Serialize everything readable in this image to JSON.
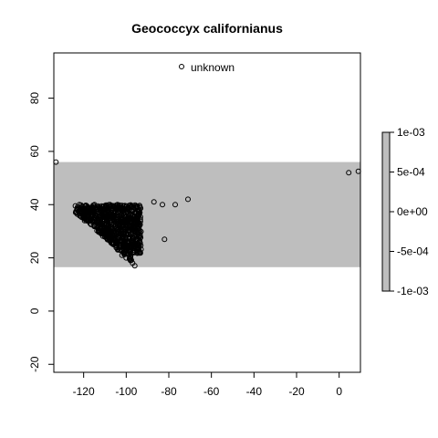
{
  "chart_data": {
    "type": "scatter",
    "title": "Geococcyx californianus",
    "xlim": [
      -134,
      10
    ],
    "ylim": [
      -23,
      97
    ],
    "x_ticks": [
      -120,
      -100,
      -80,
      -60,
      -40,
      -20,
      0
    ],
    "y_ticks": [
      -20,
      0,
      20,
      40,
      60,
      80
    ],
    "grid": false,
    "band": {
      "y_min": 16.5,
      "y_max": 56,
      "color": "#bebebe"
    },
    "legend": {
      "label": "unknown",
      "position": "top"
    },
    "outlier_points": [
      {
        "x": -133,
        "y": 56
      },
      {
        "x": -82,
        "y": 27
      },
      {
        "x": -96,
        "y": 17
      },
      {
        "x": -97,
        "y": 18
      },
      {
        "x": -87,
        "y": 41
      },
      {
        "x": -83,
        "y": 40
      },
      {
        "x": -77,
        "y": 40
      },
      {
        "x": -71,
        "y": 42
      },
      {
        "x": 4.5,
        "y": 52
      },
      {
        "x": 9,
        "y": 52.5
      },
      {
        "x": -110,
        "y": 39
      },
      {
        "x": -104,
        "y": 39.5
      },
      {
        "x": -122,
        "y": 40
      }
    ],
    "dense_cluster": {
      "description_points": [
        {
          "x": -123,
          "y": 38
        },
        {
          "x": -121,
          "y": 37
        },
        {
          "x": -120,
          "y": 35
        },
        {
          "x": -118,
          "y": 34
        },
        {
          "x": -117,
          "y": 33
        },
        {
          "x": -115,
          "y": 32
        },
        {
          "x": -112,
          "y": 31
        },
        {
          "x": -110,
          "y": 29
        },
        {
          "x": -108,
          "y": 27
        },
        {
          "x": -106,
          "y": 25
        },
        {
          "x": -104,
          "y": 23
        },
        {
          "x": -102,
          "y": 21
        },
        {
          "x": -100,
          "y": 20
        },
        {
          "x": -98,
          "y": 19
        },
        {
          "x": -97,
          "y": 22
        },
        {
          "x": -96,
          "y": 25
        },
        {
          "x": -95,
          "y": 28
        },
        {
          "x": -94,
          "y": 31
        },
        {
          "x": -95,
          "y": 34
        },
        {
          "x": -97,
          "y": 36
        },
        {
          "x": -100,
          "y": 37
        },
        {
          "x": -104,
          "y": 37
        },
        {
          "x": -108,
          "y": 37
        },
        {
          "x": -112,
          "y": 36
        },
        {
          "x": -116,
          "y": 36
        },
        {
          "x": -119,
          "y": 37
        }
      ],
      "x_range": [
        -124,
        -93
      ],
      "y_range": [
        18.5,
        40
      ]
    },
    "colorbar": {
      "tick_labels": [
        "1e-03",
        "5e-04",
        "0e+00",
        "-5e-04",
        "-1e-03"
      ],
      "fill_color": "#bebebe"
    }
  }
}
